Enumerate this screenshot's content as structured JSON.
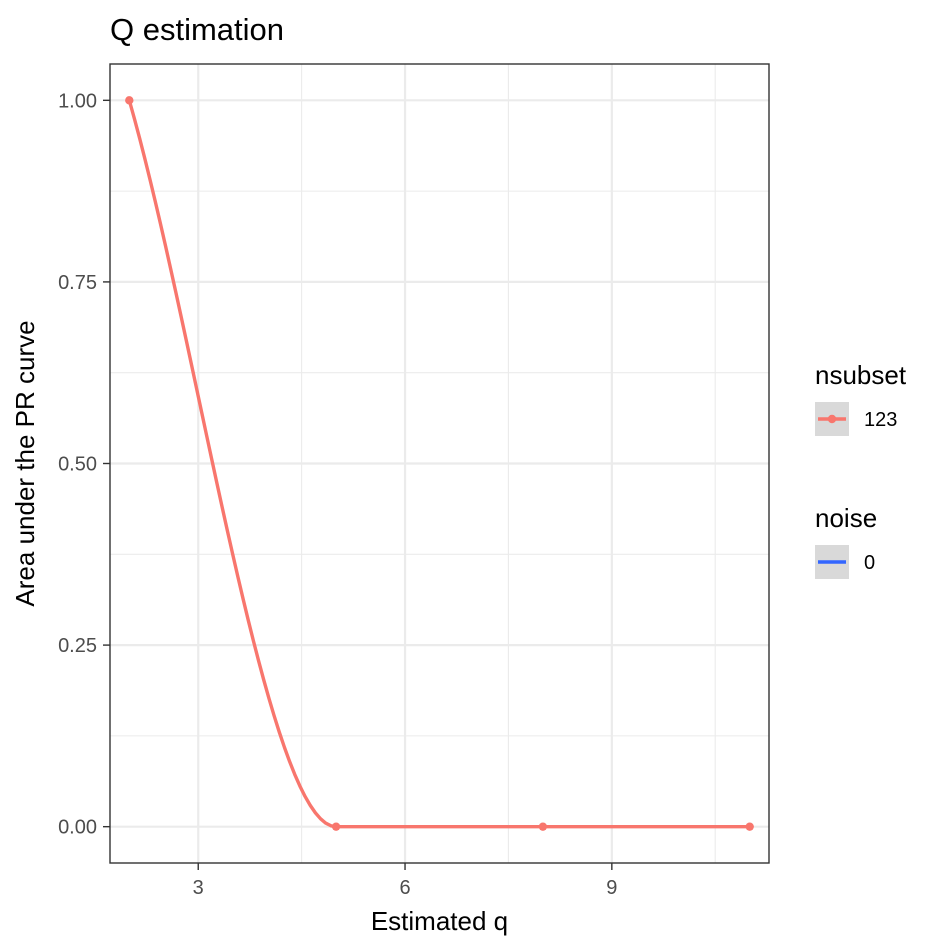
{
  "chart_data": {
    "type": "line",
    "title": "Q estimation",
    "xlabel": "Estimated q",
    "ylabel": "Area under the PR curve",
    "xlim": [
      1.72,
      11.28
    ],
    "ylim": [
      -0.05,
      1.05
    ],
    "x_ticks": [
      3,
      6,
      9
    ],
    "x_tick_labels": [
      "3",
      "6",
      "9"
    ],
    "y_ticks": [
      0,
      0.25,
      0.5,
      0.75,
      1.0
    ],
    "y_tick_labels": [
      "0.00",
      "0.25",
      "0.50",
      "0.75",
      "1.00"
    ],
    "grid": true,
    "smoothed": true,
    "series": [
      {
        "name": "123",
        "color": "#F8766D",
        "x": [
          2,
          5,
          8,
          11
        ],
        "y": [
          1.0,
          0.0,
          0.0,
          0.0
        ]
      }
    ],
    "legend": {
      "position": "right",
      "groups": [
        {
          "title": "nsubset",
          "entries": [
            {
              "label": "123",
              "color": "#F8766D",
              "marker": "line-point"
            }
          ]
        },
        {
          "title": "noise",
          "entries": [
            {
              "label": "0",
              "color": "#3366FF",
              "marker": "line"
            }
          ]
        }
      ]
    }
  }
}
